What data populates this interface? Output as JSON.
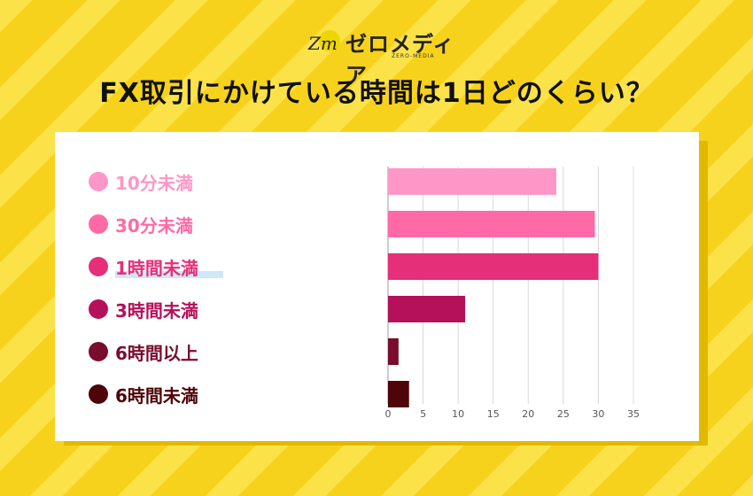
{
  "brand": {
    "name": "ゼロメディア",
    "sub": "ZERO-MEDIA",
    "mark": "Zm"
  },
  "title": "FX取引にかけている時間は1日どのくらい？",
  "chart_data": {
    "type": "bar",
    "orientation": "horizontal",
    "title": "FX取引にかけている時間は1日どのくらい？",
    "categories": [
      "10分未満",
      "30分未満",
      "1時間未満",
      "3時間未満",
      "6時間以上",
      "6時間未満"
    ],
    "values": [
      24,
      29.5,
      30,
      11,
      1.5,
      3
    ],
    "colors": [
      "#ff96c8",
      "#ff6aa6",
      "#e52f78",
      "#b5105a",
      "#7a0c2e",
      "#4e0408"
    ],
    "xlim": [
      0,
      35
    ],
    "xticks": [
      "0",
      "5",
      "10",
      "15",
      "20",
      "25",
      "30",
      "35"
    ],
    "grid": true,
    "legend": "left",
    "highlighted_category": "1時間未満"
  }
}
